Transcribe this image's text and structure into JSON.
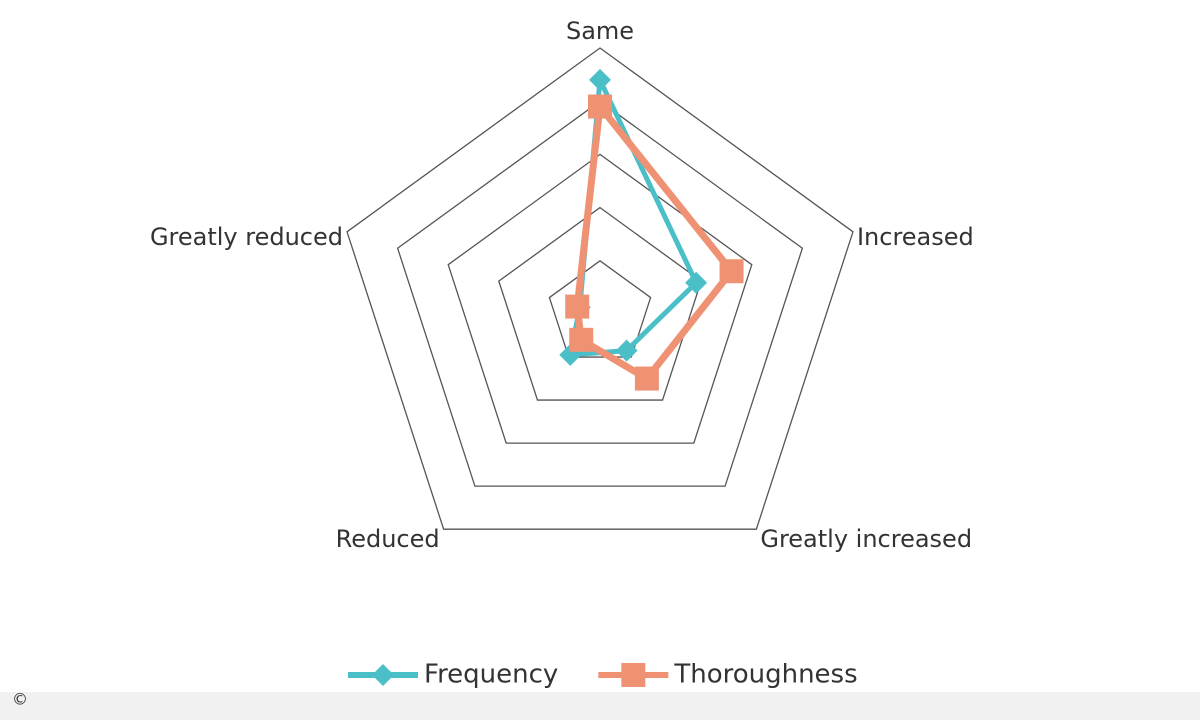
{
  "chart_data": {
    "type": "radar",
    "categories": [
      "Same",
      "Increased",
      "Greatly increased",
      "Reduced",
      "Greatly reduced"
    ],
    "series": [
      {
        "name": "Frequency",
        "color": "#4bbfc8",
        "marker": "diamond",
        "values": [
          44,
          19,
          8.5,
          9.5,
          4
        ]
      },
      {
        "name": "Thoroughness",
        "color": "#ef9274",
        "marker": "square",
        "values": [
          39,
          26,
          15,
          6,
          4.5
        ]
      }
    ],
    "rlim": [
      0,
      50
    ],
    "rticks": [
      10,
      20,
      30,
      40,
      50
    ],
    "grid": true,
    "legend": "bottom",
    "watermark": "©"
  }
}
